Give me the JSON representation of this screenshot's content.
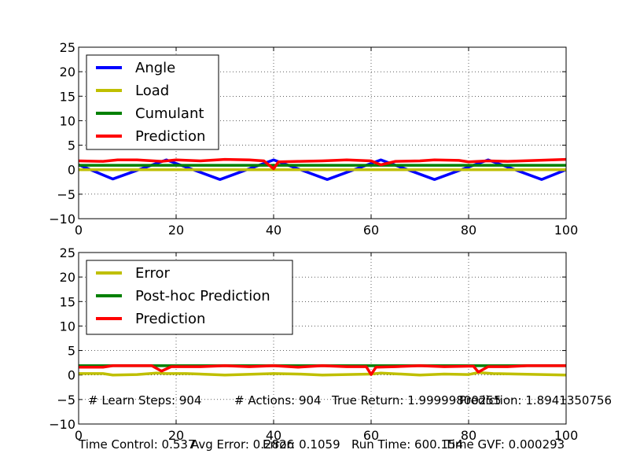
{
  "chart_data": [
    {
      "type": "line",
      "title": "",
      "xlabel": "",
      "ylabel": "",
      "xlim": [
        0,
        100
      ],
      "ylim": [
        -10,
        25
      ],
      "xticks": [
        "0",
        "20",
        "40",
        "60",
        "80",
        "100"
      ],
      "yticks": [
        "−10",
        "−5",
        "0",
        "5",
        "10",
        "15",
        "20",
        "25"
      ],
      "grid": true,
      "legend_position": "upper-left",
      "series": [
        {
          "name": "Angle",
          "color": "#0000ff",
          "x": [
            0,
            7,
            18,
            29,
            40,
            51,
            62,
            73,
            84,
            95,
            100
          ],
          "y": [
            1,
            -1.9,
            2,
            -2,
            2,
            -2,
            2,
            -2,
            2,
            -2,
            0
          ]
        },
        {
          "name": "Load",
          "color": "#bfbf00",
          "x": [
            0,
            100
          ],
          "y": [
            0,
            0
          ]
        },
        {
          "name": "Cumulant",
          "color": "#008000",
          "x": [
            0,
            100
          ],
          "y": [
            0.9,
            0.9
          ]
        },
        {
          "name": "Prediction",
          "color": "#ff0000",
          "x": [
            0,
            5,
            8,
            12,
            17,
            20,
            25,
            30,
            35,
            38,
            40,
            41,
            45,
            50,
            55,
            60,
            62,
            65,
            70,
            73,
            78,
            80,
            84,
            88,
            94,
            100
          ],
          "y": [
            1.8,
            1.7,
            2.0,
            2.0,
            1.7,
            2.0,
            1.8,
            2.1,
            2.0,
            1.8,
            0.2,
            1.6,
            1.7,
            1.8,
            2.0,
            1.8,
            1.0,
            1.7,
            1.8,
            2.0,
            1.9,
            1.6,
            1.8,
            1.7,
            1.9,
            2.1
          ]
        }
      ]
    },
    {
      "type": "line",
      "title": "",
      "xlabel": "",
      "ylabel": "",
      "xlim": [
        0,
        100
      ],
      "ylim": [
        -10,
        25
      ],
      "xticks": [
        "0",
        "20",
        "40",
        "60",
        "80",
        "100"
      ],
      "yticks": [
        "−10",
        "−5",
        "0",
        "5",
        "10",
        "15",
        "20",
        "25"
      ],
      "grid": true,
      "legend_position": "upper-left",
      "series": [
        {
          "name": "Error",
          "color": "#bfbf00",
          "x": [
            0,
            5,
            7,
            12,
            16,
            18,
            22,
            30,
            40,
            45,
            50,
            60,
            62,
            70,
            75,
            80,
            82,
            85,
            90,
            95,
            100
          ],
          "y": [
            0.3,
            0.3,
            0.0,
            0.1,
            0.4,
            0.3,
            0.3,
            0.0,
            0.3,
            0.2,
            0.0,
            0.2,
            0.4,
            0.0,
            0.2,
            0.1,
            0.5,
            0.3,
            0.2,
            0.1,
            0.0
          ]
        },
        {
          "name": "Post-hoc Prediction",
          "color": "#008000",
          "x": [
            0,
            100
          ],
          "y": [
            1.9,
            1.9
          ]
        },
        {
          "name": "Prediction",
          "color": "#ff0000",
          "x": [
            0,
            5,
            7,
            15,
            17,
            19,
            25,
            30,
            35,
            40,
            45,
            50,
            55,
            59,
            60,
            61,
            65,
            70,
            75,
            80,
            81,
            82,
            84,
            88,
            92,
            100
          ],
          "y": [
            1.6,
            1.6,
            1.9,
            1.9,
            0.8,
            1.7,
            1.7,
            1.9,
            1.7,
            1.9,
            1.6,
            1.9,
            1.7,
            1.7,
            0.1,
            1.6,
            1.7,
            1.9,
            1.7,
            1.8,
            1.8,
            0.6,
            1.7,
            1.7,
            1.9,
            1.9
          ]
        }
      ]
    }
  ],
  "annotations": {
    "learn_steps": "# Learn Steps: 904",
    "actions": "# Actions: 904",
    "true_return": "True Return: 1.99999800255",
    "prediction": "Prediction: 1.8941350756",
    "time_control": "Time Control: 0.537",
    "avg_error": "Avg Error: 0.2826",
    "error": "Error: 0.1059",
    "run_time": "Run Time: 600.154",
    "time_gvf": "Time GVF: 0.000293"
  }
}
